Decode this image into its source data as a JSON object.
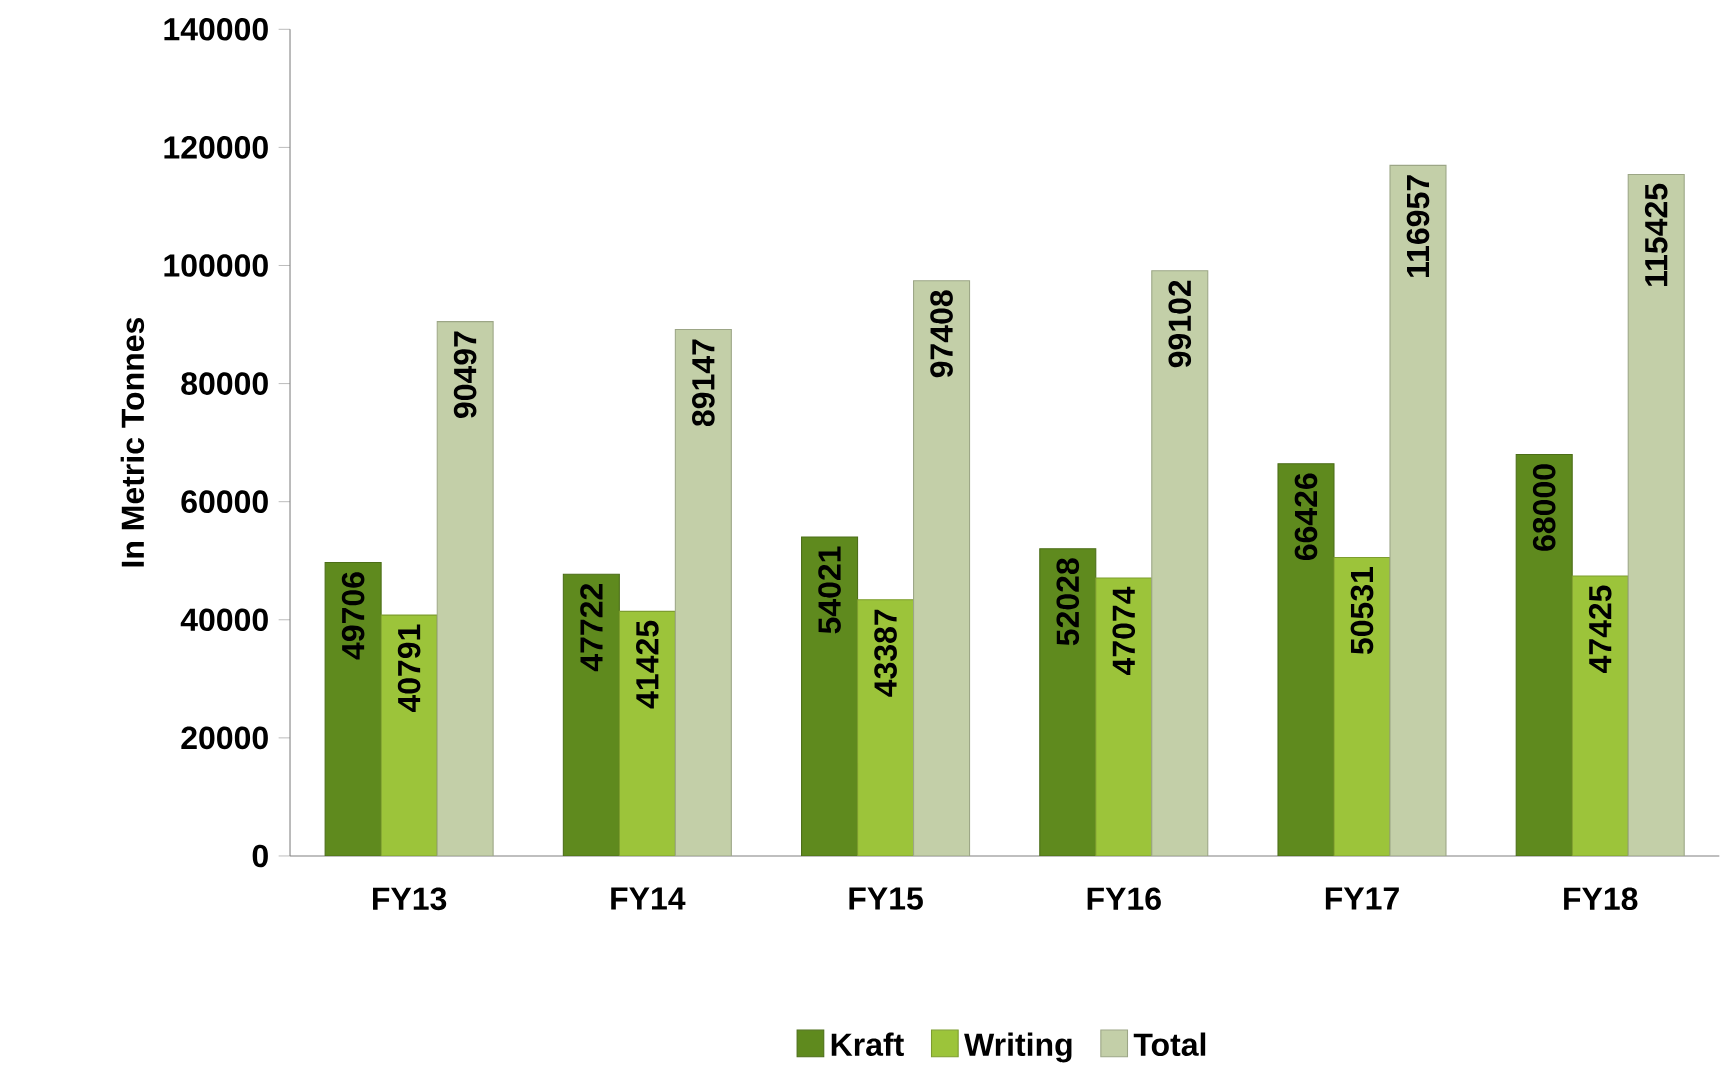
{
  "chart_data": {
    "type": "bar",
    "ylabel": "In Metric Tonnes",
    "categories": [
      "FY13",
      "FY14",
      "FY15",
      "FY16",
      "FY17",
      "FY18"
    ],
    "series": [
      {
        "name": "Kraft",
        "color": "#5f8a1e",
        "values": [
          49706,
          47722,
          54021,
          52028,
          66426,
          68000
        ]
      },
      {
        "name": "Writing",
        "color": "#9cc43a",
        "values": [
          40791,
          41425,
          43387,
          47074,
          50531,
          47425
        ]
      },
      {
        "name": "Total",
        "color": "#c3cfa8",
        "values": [
          90497,
          89147,
          97408,
          99102,
          116957,
          115425
        ]
      }
    ],
    "ylim": [
      0,
      140000
    ],
    "yticks": [
      0,
      20000,
      40000,
      60000,
      80000,
      100000,
      120000,
      140000
    ],
    "data_labels": true,
    "legend": "bottom",
    "grid": false
  }
}
